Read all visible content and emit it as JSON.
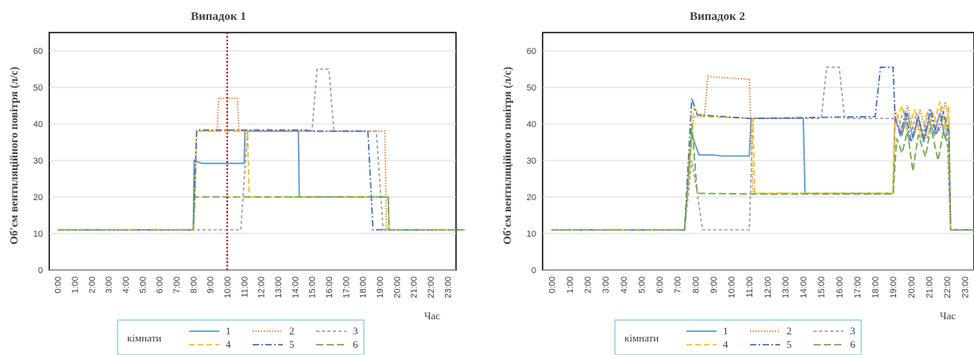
{
  "chart_data": [
    {
      "type": "line",
      "title": "Випадок 1",
      "xlabel": "Час",
      "ylabel": "Об'єм вентиляційного повітря (л/с)",
      "ylim": [
        0,
        65
      ],
      "yticks": [
        "0",
        "10",
        "20",
        "30",
        "40",
        "50",
        "60"
      ],
      "categories": [
        "0:00",
        "1:00",
        "2:00",
        "3:00",
        "4:00",
        "5:00",
        "6:00",
        "7:00",
        "8:00",
        "9:00",
        "10:00",
        "11:00",
        "12:00",
        "13:00",
        "14:00",
        "15:00",
        "16:00",
        "17:00",
        "18:00",
        "19:00",
        "20:00",
        "21:00",
        "22:00",
        "23:00"
      ],
      "grid": true,
      "vline": {
        "x": 10.0,
        "color": "#c00000"
      },
      "series": [
        {
          "name": "1",
          "color": "#5b9bd5",
          "dash": "",
          "points": [
            [
              0,
              11
            ],
            [
              8.0,
              11
            ],
            [
              8.05,
              30
            ],
            [
              8.5,
              29.2
            ],
            [
              11.0,
              29.2
            ],
            [
              11.05,
              38
            ],
            [
              14.2,
              38
            ],
            [
              14.25,
              20
            ],
            [
              19.5,
              20
            ],
            [
              19.55,
              11
            ],
            [
              24,
              11
            ]
          ]
        },
        {
          "name": "2",
          "color": "#ed7d31",
          "dash": "1.5,2",
          "points": [
            [
              0,
              11
            ],
            [
              8.0,
              11
            ],
            [
              8.2,
              38
            ],
            [
              9.4,
              38
            ],
            [
              9.5,
              47
            ],
            [
              10.6,
              47
            ],
            [
              10.7,
              38
            ],
            [
              19.3,
              38
            ],
            [
              19.4,
              11
            ],
            [
              24,
              11
            ]
          ]
        },
        {
          "name": "3",
          "color": "#a5a5a5",
          "dash": "4,3",
          "points": [
            [
              0,
              11
            ],
            [
              8.0,
              11
            ],
            [
              10.8,
              11
            ],
            [
              11.2,
              38
            ],
            [
              15.0,
              38
            ],
            [
              15.3,
              55
            ],
            [
              16.0,
              55
            ],
            [
              16.3,
              38
            ],
            [
              18.8,
              38
            ],
            [
              19.2,
              11
            ],
            [
              24,
              11
            ]
          ]
        },
        {
          "name": "4",
          "color": "#ffc000",
          "dash": "7,4",
          "points": [
            [
              0,
              11
            ],
            [
              8.0,
              11
            ],
            [
              8.1,
              20
            ],
            [
              8.2,
              38
            ],
            [
              11.2,
              38
            ],
            [
              11.3,
              20
            ],
            [
              19.5,
              20
            ],
            [
              19.55,
              11
            ],
            [
              24,
              11
            ]
          ]
        },
        {
          "name": "5",
          "color": "#4472c4",
          "dash": "8,3,2,3",
          "points": [
            [
              0,
              11
            ],
            [
              8.0,
              11
            ],
            [
              8.2,
              38.3
            ],
            [
              14.5,
              38.3
            ],
            [
              15.2,
              38
            ],
            [
              18.3,
              38
            ],
            [
              18.6,
              11
            ],
            [
              24,
              11
            ]
          ]
        },
        {
          "name": "6",
          "color": "#70ad47",
          "dash": "9,4",
          "points": [
            [
              0,
              11
            ],
            [
              8.0,
              11
            ],
            [
              8.1,
              20
            ],
            [
              19.5,
              20
            ],
            [
              19.55,
              11
            ],
            [
              24,
              11
            ]
          ]
        }
      ]
    },
    {
      "type": "line",
      "title": "Випадок 2",
      "xlabel": "Час",
      "ylabel": "Об'єм вентиляційного повітря (л/с)",
      "ylim": [
        0,
        65
      ],
      "yticks": [
        "0",
        "10",
        "20",
        "30",
        "40",
        "50",
        "60"
      ],
      "categories": [
        "0:00",
        "1:00",
        "2:00",
        "3:00",
        "4:00",
        "5:00",
        "6:00",
        "7:00",
        "8:00",
        "9:00",
        "10:00",
        "11:00",
        "12:00",
        "13:00",
        "14:00",
        "15:00",
        "16:00",
        "17:00",
        "18:00",
        "19:00",
        "20:00",
        "21:00",
        "22:00",
        "23:00"
      ],
      "grid": true,
      "series": [
        {
          "name": "1",
          "color": "#5b9bd5",
          "dash": "",
          "points": [
            [
              0,
              11
            ],
            [
              7.4,
              11
            ],
            [
              7.8,
              37
            ],
            [
              8.2,
              31.5
            ],
            [
              9.0,
              31.5
            ],
            [
              9.5,
              31.2
            ],
            [
              11.0,
              31.2
            ],
            [
              11.1,
              41.5
            ],
            [
              14.0,
              41.5
            ],
            [
              14.1,
              21
            ],
            [
              19.0,
              21
            ],
            [
              19.1,
              41
            ],
            [
              19.5,
              37
            ],
            [
              19.8,
              43
            ],
            [
              20.1,
              36
            ],
            [
              20.4,
              42
            ],
            [
              20.7,
              35
            ],
            [
              21.0,
              41
            ],
            [
              21.3,
              37
            ],
            [
              21.6,
              43
            ],
            [
              21.9,
              36
            ],
            [
              22.1,
              40
            ],
            [
              22.2,
              11
            ],
            [
              24,
              11
            ]
          ]
        },
        {
          "name": "2",
          "color": "#ed7d31",
          "dash": "1.5,2",
          "points": [
            [
              0,
              11
            ],
            [
              7.4,
              11
            ],
            [
              7.9,
              42
            ],
            [
              8.5,
              42
            ],
            [
              8.7,
              53
            ],
            [
              10.0,
              52.5
            ],
            [
              11.0,
              52.2
            ],
            [
              11.2,
              21
            ],
            [
              19.0,
              21
            ],
            [
              19.1,
              44
            ],
            [
              19.5,
              38
            ],
            [
              19.8,
              45
            ],
            [
              20.2,
              37
            ],
            [
              20.5,
              44
            ],
            [
              20.9,
              36
            ],
            [
              21.2,
              43
            ],
            [
              21.6,
              38
            ],
            [
              21.9,
              46
            ],
            [
              22.1,
              41
            ],
            [
              22.2,
              11
            ],
            [
              24,
              11
            ]
          ]
        },
        {
          "name": "3",
          "color": "#a5a5a5",
          "dash": "4,3",
          "points": [
            [
              0,
              11
            ],
            [
              7.4,
              11
            ],
            [
              7.8,
              30
            ],
            [
              8.1,
              21
            ],
            [
              8.4,
              11
            ],
            [
              11.0,
              11
            ],
            [
              11.2,
              41.5
            ],
            [
              15.0,
              41.5
            ],
            [
              15.3,
              55.5
            ],
            [
              16.0,
              55.5
            ],
            [
              16.3,
              41.5
            ],
            [
              19.0,
              41.5
            ],
            [
              19.3,
              39
            ],
            [
              19.6,
              44
            ],
            [
              19.9,
              35
            ],
            [
              20.3,
              43
            ],
            [
              20.6,
              36
            ],
            [
              21.0,
              44
            ],
            [
              21.3,
              38
            ],
            [
              21.7,
              45
            ],
            [
              22.0,
              37
            ],
            [
              22.2,
              11
            ],
            [
              24,
              11
            ]
          ]
        },
        {
          "name": "4",
          "color": "#ffc000",
          "dash": "7,4",
          "points": [
            [
              0,
              11
            ],
            [
              7.4,
              11
            ],
            [
              7.9,
              44
            ],
            [
              8.5,
              42
            ],
            [
              11.2,
              41.5
            ],
            [
              11.3,
              21
            ],
            [
              19.0,
              21
            ],
            [
              19.1,
              40
            ],
            [
              19.5,
              45
            ],
            [
              19.8,
              37
            ],
            [
              20.2,
              44
            ],
            [
              20.5,
              36
            ],
            [
              20.9,
              43
            ],
            [
              21.2,
              39
            ],
            [
              21.6,
              46
            ],
            [
              21.9,
              38
            ],
            [
              22.1,
              45
            ],
            [
              22.2,
              11
            ],
            [
              24,
              11
            ]
          ]
        },
        {
          "name": "5",
          "color": "#4472c4",
          "dash": "8,3,2,3",
          "points": [
            [
              0,
              11
            ],
            [
              7.4,
              11
            ],
            [
              7.8,
              47
            ],
            [
              8.1,
              42.5
            ],
            [
              11.0,
              41.5
            ],
            [
              18.0,
              42
            ],
            [
              18.3,
              55.5
            ],
            [
              19.0,
              55.5
            ],
            [
              19.1,
              42
            ],
            [
              19.4,
              37
            ],
            [
              19.7,
              43
            ],
            [
              20.0,
              35
            ],
            [
              20.4,
              42
            ],
            [
              20.7,
              36
            ],
            [
              21.1,
              44
            ],
            [
              21.4,
              37
            ],
            [
              21.8,
              43
            ],
            [
              22.1,
              38
            ],
            [
              22.2,
              11
            ],
            [
              24,
              11
            ]
          ]
        },
        {
          "name": "6",
          "color": "#70ad47",
          "dash": "9,4",
          "points": [
            [
              0,
              11
            ],
            [
              7.4,
              11
            ],
            [
              7.8,
              40
            ],
            [
              8.1,
              21
            ],
            [
              11.0,
              20.8
            ],
            [
              19.0,
              20.8
            ],
            [
              19.2,
              36
            ],
            [
              19.5,
              32
            ],
            [
              19.8,
              38
            ],
            [
              20.1,
              27
            ],
            [
              20.4,
              37
            ],
            [
              20.8,
              31
            ],
            [
              21.1,
              39
            ],
            [
              21.5,
              30
            ],
            [
              21.8,
              38
            ],
            [
              22.1,
              33
            ],
            [
              22.2,
              11
            ],
            [
              24,
              11
            ]
          ]
        }
      ]
    }
  ],
  "legend": {
    "heading": "кімнати",
    "items": [
      "1",
      "2",
      "3",
      "4",
      "5",
      "6"
    ]
  }
}
